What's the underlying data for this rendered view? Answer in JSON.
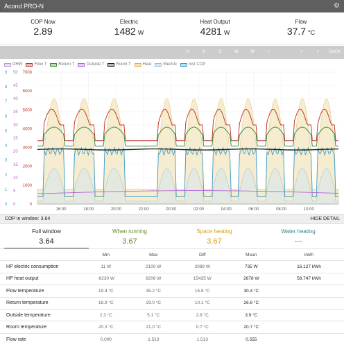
{
  "window_title": "Acond PRO-N",
  "stats": [
    {
      "label": "COP Now",
      "value": "2.89",
      "unit": ""
    },
    {
      "label": "Electric",
      "value": "1482",
      "unit": "W"
    },
    {
      "label": "Heat Output",
      "value": "4281",
      "unit": "W"
    },
    {
      "label": "Flow",
      "value": "37.7",
      "unit": "°C"
    }
  ],
  "toolbar": [
    "H",
    "6",
    "D",
    "W",
    "M",
    "+",
    "-",
    "<",
    ">",
    "BACK"
  ],
  "legend": [
    {
      "name": "DHW",
      "color": "#b79be0"
    },
    {
      "name": "Flow T",
      "color": "#c0392b"
    },
    {
      "name": "Return T",
      "color": "#3d8b3d"
    },
    {
      "name": "Outside T",
      "color": "#b565d8"
    },
    {
      "name": "Room T",
      "color": "#222222"
    },
    {
      "name": "Heat",
      "color": "#e0b040"
    },
    {
      "name": "Electric",
      "color": "#8fc0e0"
    },
    {
      "name": "Inst COP",
      "color": "#3aa0d0"
    }
  ],
  "chart_data": {
    "type": "line",
    "x_labels": [
      "16:00",
      "18:00",
      "20:00",
      "22:00",
      "00:00",
      "02:00",
      "04:00",
      "06:00",
      "08:00",
      "10:00"
    ],
    "y_left_temp": [
      "0",
      "5",
      "10",
      "15",
      "20",
      "25",
      "30",
      "35",
      "40",
      "45",
      "50"
    ],
    "y_left_power": [
      "0",
      "1000",
      "2000",
      "3000",
      "4000",
      "5000",
      "6000",
      "7000"
    ],
    "y_left_cop": [
      "0",
      "1",
      "2",
      "3",
      "4",
      "5",
      "6",
      "7",
      "8",
      "9"
    ],
    "grid": true
  },
  "cop_window": {
    "label": "COP in window: 3.64",
    "toggle": "HIDE DETAIL"
  },
  "summary": [
    {
      "label": "Full window",
      "value": "3.64",
      "color": "#222222"
    },
    {
      "label": "When running",
      "value": "3.67",
      "color": "#5b8b2a"
    },
    {
      "label": "Space heating",
      "value": "3.67",
      "color": "#d4a017"
    },
    {
      "label": "Water heating",
      "value": "---",
      "color": "#2e8b8b"
    }
  ],
  "table": {
    "headers": [
      "",
      "Min",
      "Max",
      "Diff",
      "Mean",
      "kWh"
    ],
    "rows": [
      [
        "HP electric consumption",
        "11 W",
        "2100 W",
        "2089 W",
        "735 W",
        "16.127 kWh"
      ],
      [
        "HP heat output",
        "-9230 W",
        "6206 W",
        "15435 W",
        "2678 W",
        "58.747 kWh"
      ],
      [
        "Flow temperature",
        "19.4 °C",
        "35.2 °C",
        "15.8 °C",
        "30.4 °C",
        ""
      ],
      [
        "Return temperature",
        "18.9 °C",
        "29.0 °C",
        "10.1 °C",
        "26.6 °C",
        ""
      ],
      [
        "Outside temperature",
        "2.3 °C",
        "5.1 °C",
        "2.8 °C",
        "3.9 °C",
        ""
      ],
      [
        "Room temperature",
        "20.3 °C",
        "21.0 °C",
        "0.7 °C",
        "20.7 °C",
        ""
      ],
      [
        "Flow rate",
        "0.000",
        "1.513",
        "1.513",
        "0.555",
        ""
      ]
    ]
  }
}
